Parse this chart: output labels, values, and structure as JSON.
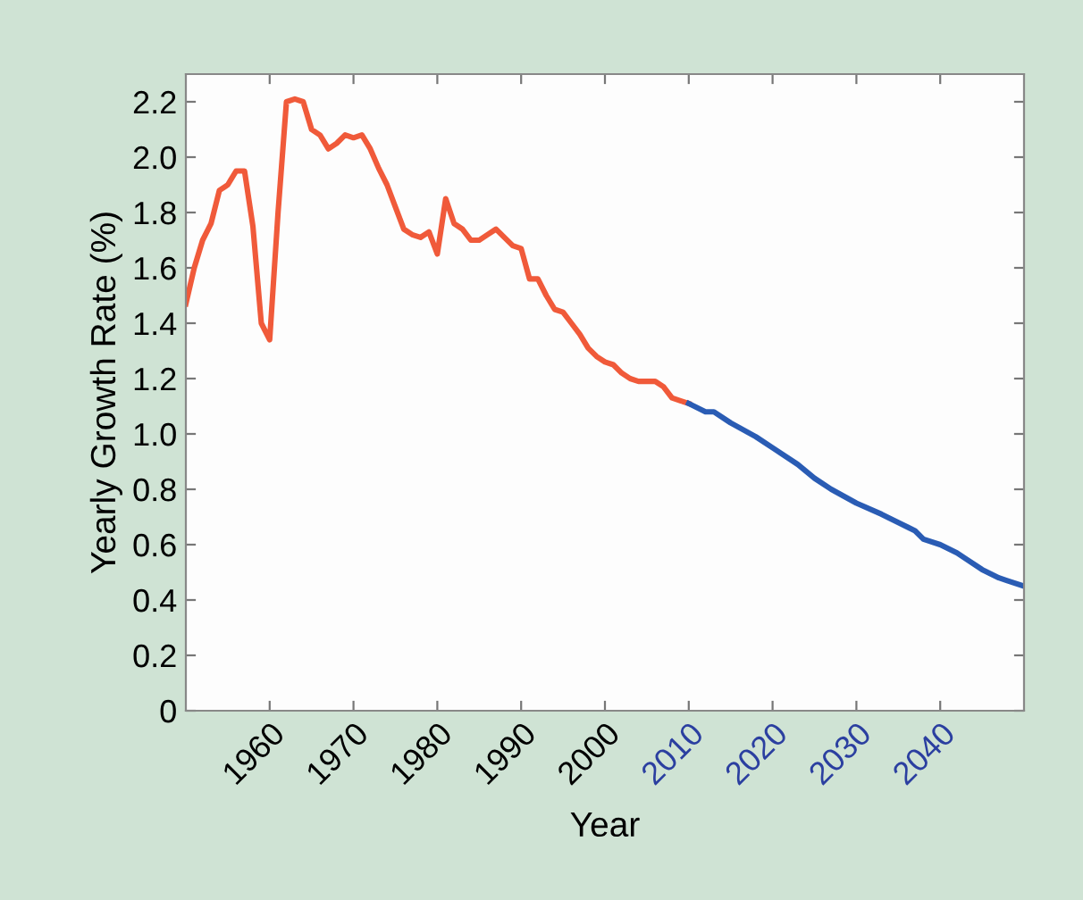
{
  "chart_data": {
    "type": "line",
    "xlabel": "Year",
    "ylabel": "Yearly Growth Rate (%)",
    "xlim": [
      1950,
      2050
    ],
    "ylim": [
      0,
      2.3
    ],
    "xticks": [
      1960,
      1970,
      1980,
      1990,
      2000,
      2010,
      2020,
      2030,
      2040
    ],
    "yticks": [
      0,
      0.2,
      0.4,
      0.6,
      0.8,
      {
        "value": 1,
        "label": "1.0"
      },
      1.2,
      1.4,
      1.6,
      1.8,
      {
        "value": 2,
        "label": "2.0"
      },
      2.2
    ],
    "grid": false,
    "marker": "none",
    "line_style": "solid",
    "series": [
      {
        "color": "#f05a3a",
        "x": [
          1950,
          1951,
          1952,
          1953,
          1954,
          1955,
          1956,
          1957,
          1958,
          1959,
          1960,
          1961,
          1962,
          1963,
          1964,
          1965,
          1966,
          1967,
          1968,
          1969,
          1970,
          1971,
          1972,
          1973,
          1974,
          1975,
          1976,
          1977,
          1978,
          1979,
          1980,
          1981,
          1982,
          1983,
          1984,
          1985,
          1986,
          1987,
          1988,
          1989,
          1990,
          1991,
          1992,
          1993,
          1994,
          1995,
          1996,
          1997,
          1998,
          1999,
          2000,
          2001,
          2002,
          2003,
          2004,
          2005,
          2006,
          2007,
          2008,
          2009,
          2010
        ],
        "values": [
          1.47,
          1.6,
          1.7,
          1.76,
          1.88,
          1.9,
          1.95,
          1.95,
          1.75,
          1.4,
          1.34,
          1.8,
          2.2,
          2.21,
          2.2,
          2.1,
          2.08,
          2.03,
          2.05,
          2.08,
          2.07,
          2.08,
          2.03,
          1.96,
          1.9,
          1.82,
          1.74,
          1.72,
          1.71,
          1.73,
          1.65,
          1.85,
          1.76,
          1.74,
          1.7,
          1.7,
          1.72,
          1.74,
          1.71,
          1.68,
          1.67,
          1.56,
          1.56,
          1.5,
          1.45,
          1.44,
          1.4,
          1.36,
          1.31,
          1.28,
          1.26,
          1.25,
          1.22,
          1.2,
          1.19,
          1.19,
          1.19,
          1.17,
          1.13,
          1.12,
          1.11
        ]
      },
      {
        "color": "#2a5cb4",
        "x": [
          2010,
          2012,
          2013,
          2015,
          2018,
          2020,
          2023,
          2025,
          2027,
          2030,
          2033,
          2035,
          2037,
          2038,
          2040,
          2042,
          2043,
          2045,
          2047,
          2048,
          2050
        ],
        "values": [
          1.11,
          1.08,
          1.08,
          1.04,
          0.99,
          0.95,
          0.89,
          0.84,
          0.8,
          0.75,
          0.71,
          0.68,
          0.65,
          0.62,
          0.6,
          0.57,
          0.55,
          0.51,
          0.48,
          0.47,
          0.45
        ]
      }
    ]
  }
}
